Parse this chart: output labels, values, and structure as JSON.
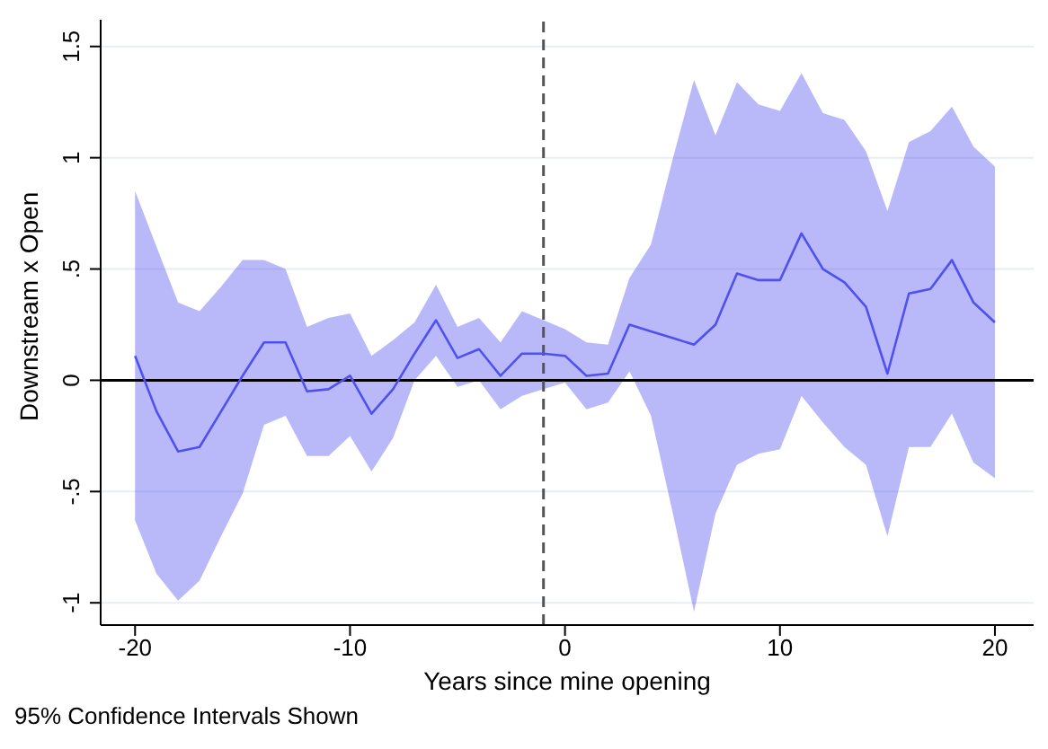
{
  "chart_data": {
    "type": "line",
    "xlabel": "Years since mine opening",
    "ylabel": "Downstream x Open",
    "annotations": [
      "95% Confidence Intervals Shown"
    ],
    "x": [
      -20,
      -19,
      -18,
      -17,
      -16,
      -15,
      -14,
      -13,
      -12,
      -11,
      -10,
      -9,
      -8,
      -7,
      -6,
      -5,
      -4,
      -3,
      -2,
      -1,
      0,
      1,
      2,
      3,
      4,
      5,
      6,
      7,
      8,
      9,
      10,
      11,
      12,
      13,
      14,
      15,
      16,
      17,
      18,
      19,
      20
    ],
    "series": [
      {
        "color": "#5050f0",
        "values": [
          0.11,
          -0.14,
          -0.32,
          -0.3,
          -0.14,
          0.02,
          0.17,
          0.17,
          -0.05,
          -0.04,
          0.02,
          -0.15,
          -0.04,
          0.12,
          0.27,
          0.1,
          0.14,
          0.02,
          0.12,
          0.12,
          0.11,
          0.02,
          0.03,
          0.25,
          0.22,
          0.19,
          0.16,
          0.25,
          0.48,
          0.45,
          0.45,
          0.66,
          0.5,
          0.44,
          0.33,
          0.03,
          0.39,
          0.41,
          0.54,
          0.35,
          0.26
        ],
        "lower": [
          -0.63,
          -0.87,
          -0.99,
          -0.9,
          -0.7,
          -0.51,
          -0.2,
          -0.16,
          -0.34,
          -0.34,
          -0.25,
          -0.41,
          -0.26,
          0.0,
          0.11,
          -0.03,
          0.0,
          -0.13,
          -0.07,
          -0.04,
          -0.01,
          -0.13,
          -0.1,
          0.04,
          -0.16,
          -0.59,
          -1.04,
          -0.6,
          -0.38,
          -0.33,
          -0.31,
          -0.07,
          -0.19,
          -0.3,
          -0.38,
          -0.7,
          -0.3,
          -0.3,
          -0.15,
          -0.37,
          -0.44
        ],
        "upper": [
          0.85,
          0.6,
          0.35,
          0.31,
          0.42,
          0.54,
          0.54,
          0.5,
          0.24,
          0.28,
          0.3,
          0.11,
          0.18,
          0.26,
          0.43,
          0.24,
          0.28,
          0.17,
          0.31,
          0.27,
          0.23,
          0.17,
          0.16,
          0.46,
          0.61,
          0.99,
          1.35,
          1.1,
          1.34,
          1.24,
          1.21,
          1.38,
          1.2,
          1.17,
          1.03,
          0.76,
          1.07,
          1.12,
          1.23,
          1.05,
          0.96
        ]
      }
    ],
    "xlim": [
      -21.6,
      21.8
    ],
    "xticks": [
      -20,
      -10,
      0,
      10,
      20
    ],
    "ylim": [
      -1.1,
      1.62
    ],
    "yticks": [
      -1,
      {
        "value": -0.5,
        "label": "-.5"
      },
      0,
      {
        "value": 0.5,
        "label": ".5"
      },
      1,
      1.5
    ],
    "ref_lines": [
      {
        "axis": "y",
        "value": 0,
        "color": "#000000",
        "line_style": "solid"
      },
      {
        "axis": "x",
        "value": -1,
        "color": "#555555",
        "line_style": "dashed"
      }
    ],
    "grid": "y",
    "marker": "none",
    "line_style": "solid"
  }
}
